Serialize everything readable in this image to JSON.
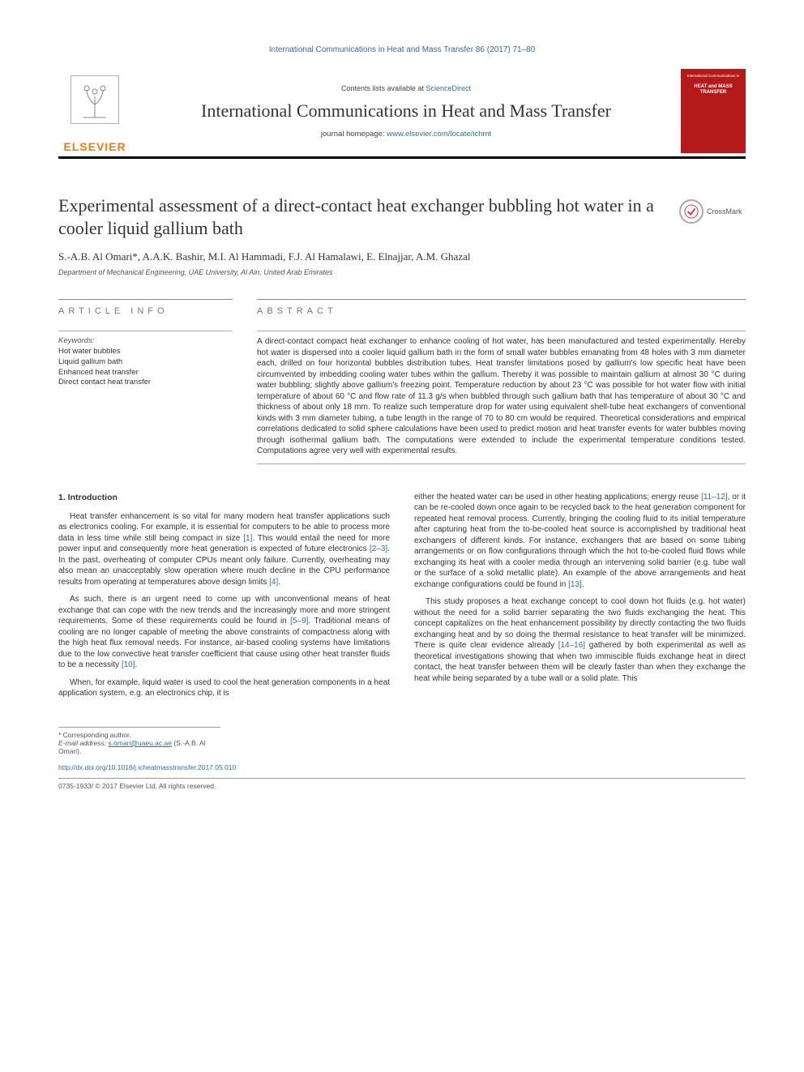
{
  "header": {
    "topline": "International Communications in Heat and Mass Transfer 86 (2017) 71–80",
    "contents_prefix": "Contents lists available at ",
    "contents_link": "ScienceDirect",
    "journal_name": "International Communications in Heat and Mass Transfer",
    "homepage_prefix": "journal homepage: ",
    "homepage_link": "www.elsevier.com/locate/ichmt",
    "publisher": "ELSEVIER",
    "cover_title": "HEAT and MASS TRANSFER",
    "cover_supertitle": "International Communications in",
    "crossmark_label": "CrossMark",
    "colors": {
      "link": "#2e6db4",
      "accent_orange": "#ff7a00",
      "cover_bg": "#b51a1a",
      "rule_dark": "#000000",
      "text": "#333333",
      "muted": "#777777"
    }
  },
  "article": {
    "title": "Experimental assessment of a direct-contact heat exchanger bubbling hot water in a cooler liquid gallium bath",
    "authors": "S.-A.B. Al Omari*, A.A.K. Bashir, M.I. Al Hammadi, F.J. Al Hamalawi, E. Elnajjar, A.M. Ghazal",
    "affiliation": "Department of Mechanical Engineering, UAE University, Al Ain, United Arab Emirates"
  },
  "info": {
    "heading": "ARTICLE INFO",
    "keywords_label": "Keywords:",
    "keywords": [
      "Hot water bubbles",
      "Liquid gallium bath",
      "Enhanced heat transfer",
      "Direct contact heat transfer"
    ]
  },
  "abstract": {
    "heading": "ABSTRACT",
    "text": "A direct-contact compact heat exchanger to enhance cooling of hot water, has been manufactured and tested experimentally. Hereby hot water is dispersed into a cooler liquid gallium bath in the form of small water bubbles emanating from 48 holes with 3 mm diameter each, drilled on four horizontal bubbles distribution tubes. Heat transfer limitations posed by gallium's low specific heat have been circumvented by imbedding cooling water tubes within the gallium. Thereby it was possible to maintain gallium at almost 30 °C during water bubbling; slightly above gallium's freezing point. Temperature reduction by about 23 °C was possible for hot water flow with initial temperature of about 60 °C and flow rate of 11.3 g/s when bubbled through such gallium bath that has temperature of about 30 °C and thickness of about only 18 mm. To realize such temperature drop for water using equivalent shell-tube heat exchangers of conventional kinds with 3 mm diameter tubing, a tube length in the range of 70 to 80 cm would be required. Theoretical considerations and empirical correlations dedicated to solid sphere calculations have been used to predict motion and heat transfer events for water bubbles moving through isothermal gallium bath. The computations were extended to include the experimental temperature conditions tested. Computations agree very well with experimental results."
  },
  "body": {
    "section_heading": "1. Introduction",
    "left_paragraphs": [
      "Heat transfer enhancement is so vital for many modern heat transfer applications such as electronics cooling. For example, it is essential for computers to be able to process more data in less time while still being compact in size [1]. This would entail the need for more power input and consequently more heat generation is expected of future electronics [2–3]. In the past, overheating of computer CPUs meant only failure. Currently, overheating may also mean an unacceptably slow operation where much decline in the CPU performance results from operating at temperatures above design limits [4].",
      "As such, there is an urgent need to come up with unconventional means of heat exchange that can cope with the new trends and the increasingly more and more stringent requirements. Some of these requirements could be found in [5–9]. Traditional means of cooling are no longer capable of meeting the above constraints of compactness along with the high heat flux removal needs. For instance, air-based cooling systems have limitations due to the low convective heat transfer coefficient that cause using other heat transfer fluids to be a necessity [10].",
      "When, for example, liquid water is used to cool the heat generation components in a heat application system, e.g. an electronics chip, it is"
    ],
    "right_paragraphs": [
      "either the heated water can be used in other heating applications; energy reuse [11–12], or it can be re-cooled down once again to be recycled back to the heat generation component for repeated heat removal process. Currently, bringing the cooling fluid to its initial temperature after capturing heat from the to-be-cooled heat source is accomplished by traditional heat exchangers of different kinds. For instance, exchangers that are based on some tubing arrangements or on flow configurations through which the hot to-be-cooled fluid flows while exchanging its heat with a cooler media through an intervening solid barrier (e.g. tube wall or the surface of a solid metallic plate). An example of the above arrangements and heat exchange configurations could be found in [13].",
      "This study proposes a heat exchange concept to cool down hot fluids (e.g. hot water) without the need for a solid barrier separating the two fluids exchanging the heat. This concept capitalizes on the heat enhancement possibility by directly contacting the two fluids exchanging heat and by so doing the thermal resistance to heat transfer will be minimized. There is quite clear evidence already [14–16] gathered by both experimental as well as theoretical investigations showing that when two immiscible fluids exchange heat in direct contact, the heat transfer between them will be clearly faster than when they exchange the heat while being separated by a tube wall or a solid plate. This"
    ],
    "ref_links": [
      "[1]",
      "[2–3]",
      "[4]",
      "[5–9]",
      "[10]",
      "[11–12]",
      "[13]",
      "[14–16]"
    ]
  },
  "footer": {
    "corresponding": "* Corresponding author.",
    "email_label": "E-mail address: ",
    "email": "s.omari@uaeu.ac.ae",
    "email_suffix": " (S.-A.B. Al Omari).",
    "doi": "http://dx.doi.org/10.1016/j.icheatmasstransfer.2017.05.010",
    "copyright": "0735-1933/ © 2017 Elsevier Ltd. All rights reserved."
  },
  "typography": {
    "title_font": "Georgia, Times New Roman, serif",
    "body_font": "Arial, Helvetica, sans-serif",
    "title_size_pt": 22,
    "body_size_pt": 10,
    "small_size_pt": 9
  }
}
